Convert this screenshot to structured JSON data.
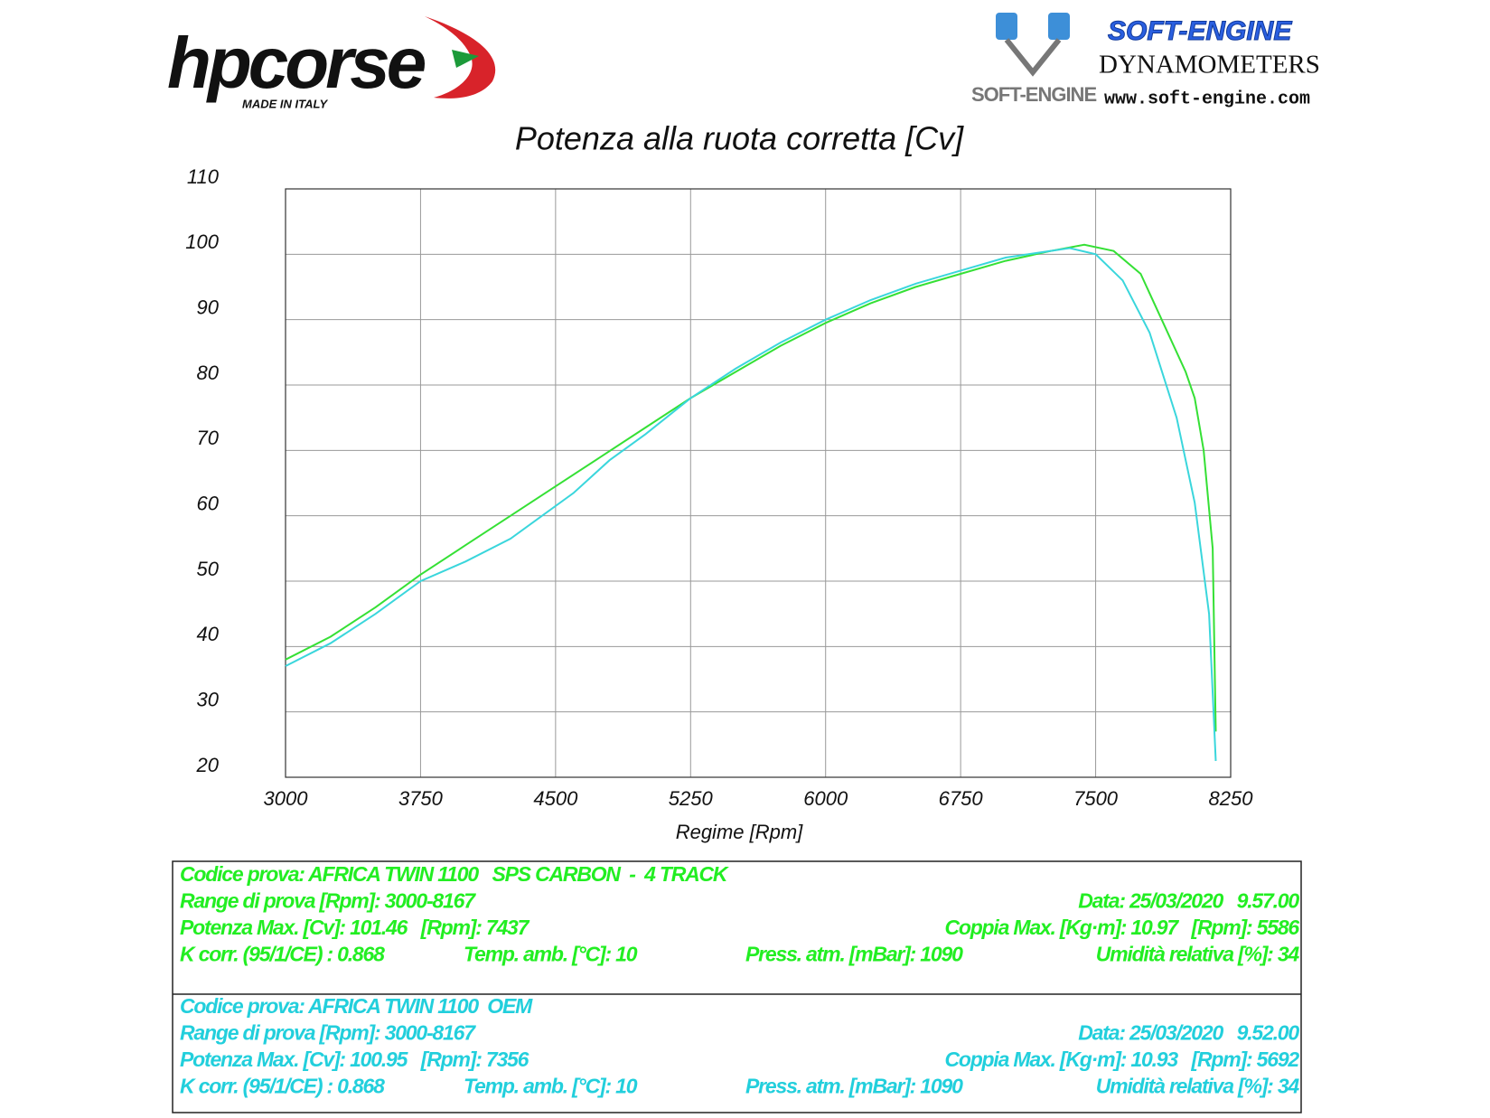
{
  "header": {
    "brand": "hpcorse",
    "brand_note": "MADE IN ITALY",
    "dyno_brand": "SOFT-ENGINE",
    "dyno_kind": "DYNAMOMETERS",
    "dyno_site": "www.soft-engine.com",
    "dyno_logo": "SOFT-ENGINE"
  },
  "chart_data": {
    "type": "line",
    "title": "Potenza alla ruota corretta [Cv]",
    "x_label": "Regime [Rpm]",
    "xlim": [
      3000,
      8250
    ],
    "xticks": [
      3000,
      3750,
      4500,
      5250,
      6000,
      6750,
      7500,
      8250
    ],
    "ylim": [
      20,
      110
    ],
    "yticks": [
      20,
      30,
      40,
      50,
      60,
      70,
      80,
      90,
      100,
      110
    ],
    "grid": true,
    "series": [
      {
        "color": "#35e035",
        "x": [
          3000,
          3250,
          3500,
          3750,
          4000,
          4250,
          4500,
          4750,
          5000,
          5250,
          5500,
          5750,
          6000,
          6250,
          6500,
          6750,
          7000,
          7250,
          7437,
          7600,
          7750,
          7900,
          8000,
          8050,
          8100,
          8150,
          8167
        ],
        "values": [
          38,
          41.5,
          46,
          51,
          55.5,
          60,
          64.5,
          69,
          73.5,
          78,
          82,
          86,
          89.5,
          92.5,
          95,
          97,
          99,
          100.5,
          101.46,
          100.5,
          97,
          88,
          82,
          78,
          70,
          55,
          27
        ]
      },
      {
        "color": "#3ad6dc",
        "x": [
          3000,
          3250,
          3500,
          3750,
          4000,
          4250,
          4400,
          4600,
          4800,
          5000,
          5250,
          5500,
          5750,
          6000,
          6250,
          6500,
          6750,
          7000,
          7356,
          7500,
          7650,
          7800,
          7950,
          8050,
          8130,
          8167
        ],
        "values": [
          37,
          40.5,
          45,
          50,
          53,
          56.5,
          59.5,
          63.5,
          68.5,
          72.5,
          78,
          82.5,
          86.5,
          90,
          93,
          95.5,
          97.5,
          99.5,
          100.95,
          100,
          96,
          88,
          75,
          62,
          45,
          22.5
        ]
      }
    ]
  },
  "tests": [
    {
      "color": "#22ee22",
      "rows": [
        [
          "Codice prova: AFRICA TWIN 1100   SPS CARBON  -  4 TRACK"
        ],
        [
          "Range di prova [Rpm]: 3000-8167",
          "Data: 25/03/2020   9.57.00"
        ],
        [
          "Potenza Max. [Cv]: 101.46   [Rpm]: 7437",
          "Coppia Max. [Kg·m]: 10.97   [Rpm]: 5586"
        ],
        [
          "K corr. (95/1/CE) : 0.868",
          "Temp. amb. [°C]: 10",
          "Press. atm. [mBar]: 1090",
          "Umidità relativa [%]: 34"
        ]
      ]
    },
    {
      "color": "#22cfdc",
      "rows": [
        [
          "Codice prova: AFRICA TWIN 1100  OEM"
        ],
        [
          "Range di prova [Rpm]: 3000-8167",
          "Data: 25/03/2020   9.52.00"
        ],
        [
          "Potenza Max. [Cv]: 100.95   [Rpm]: 7356",
          "Coppia Max. [Kg·m]: 10.93   [Rpm]: 5692"
        ],
        [
          "K corr. (95/1/CE) : 0.868",
          "Temp. amb. [°C]: 10",
          "Press. atm. [mBar]: 1090",
          "Umidità relativa [%]: 34"
        ]
      ]
    }
  ]
}
